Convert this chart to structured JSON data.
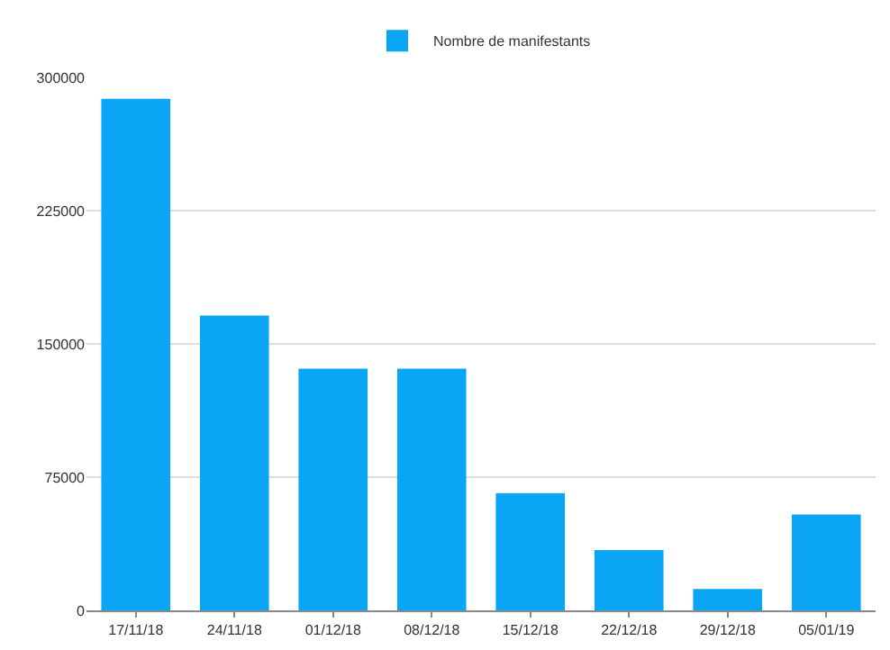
{
  "chart_data": {
    "type": "bar",
    "categories": [
      "17/11/18",
      "24/11/18",
      "01/12/18",
      "08/12/18",
      "15/12/18",
      "22/12/18",
      "29/12/18",
      "05/01/19"
    ],
    "series": [
      {
        "name": "Nombre de manifestants",
        "color": "#0ba5f5",
        "values": [
          288000,
          166000,
          136000,
          136000,
          66000,
          34000,
          12000,
          54000
        ]
      }
    ],
    "ylim": [
      0,
      300000
    ],
    "yticks": [
      0,
      75000,
      150000,
      225000,
      300000
    ],
    "grid": "y",
    "legend": "top"
  }
}
